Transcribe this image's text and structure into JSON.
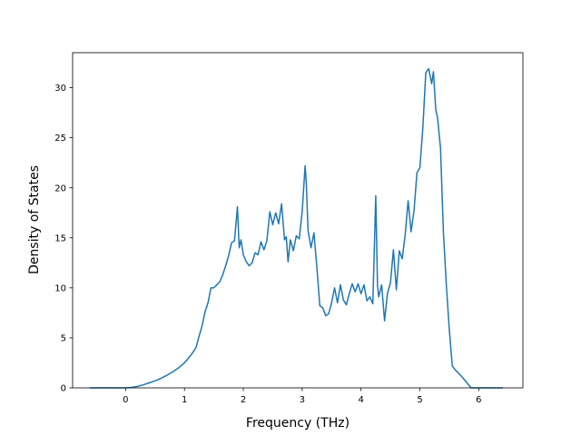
{
  "chart_data": {
    "type": "line",
    "title": "",
    "xlabel": "Frequency (THz)",
    "ylabel": "Density of States",
    "xlim": [
      -0.9,
      6.75
    ],
    "ylim": [
      0,
      33.5
    ],
    "xticks": [
      0,
      1,
      2,
      3,
      4,
      5,
      6
    ],
    "yticks": [
      0,
      5,
      10,
      15,
      20,
      25,
      30
    ],
    "grid": false,
    "legend": "none",
    "series": [
      {
        "color": "#1f77b4",
        "x": [
          -0.6,
          -0.3,
          0.0,
          0.1,
          0.2,
          0.3,
          0.4,
          0.5,
          0.6,
          0.7,
          0.8,
          0.9,
          1.0,
          1.1,
          1.15,
          1.2,
          1.25,
          1.3,
          1.35,
          1.4,
          1.45,
          1.5,
          1.55,
          1.6,
          1.65,
          1.7,
          1.75,
          1.8,
          1.85,
          1.9,
          1.93,
          1.96,
          2.0,
          2.05,
          2.1,
          2.15,
          2.2,
          2.25,
          2.3,
          2.35,
          2.4,
          2.45,
          2.5,
          2.55,
          2.6,
          2.65,
          2.7,
          2.73,
          2.76,
          2.8,
          2.85,
          2.9,
          2.95,
          3.0,
          3.05,
          3.07,
          3.1,
          3.15,
          3.2,
          3.25,
          3.3,
          3.35,
          3.4,
          3.45,
          3.5,
          3.55,
          3.6,
          3.65,
          3.7,
          3.75,
          3.8,
          3.85,
          3.9,
          3.95,
          4.0,
          4.05,
          4.1,
          4.15,
          4.2,
          4.25,
          4.28,
          4.3,
          4.35,
          4.4,
          4.45,
          4.5,
          4.55,
          4.6,
          4.65,
          4.7,
          4.75,
          4.8,
          4.85,
          4.9,
          4.95,
          5.0,
          5.05,
          5.1,
          5.15,
          5.2,
          5.23,
          5.27,
          5.3,
          5.35,
          5.4,
          5.45,
          5.5,
          5.55,
          5.6,
          5.7,
          5.8,
          5.87,
          6.0,
          6.2,
          6.4
        ],
        "y": [
          0,
          0,
          0,
          0.05,
          0.15,
          0.3,
          0.5,
          0.7,
          0.95,
          1.25,
          1.6,
          2.0,
          2.5,
          3.2,
          3.6,
          4.1,
          5.2,
          6.2,
          7.6,
          8.5,
          10.0,
          10.0,
          10.3,
          10.6,
          11.3,
          12.2,
          13.2,
          14.5,
          14.7,
          18.1,
          14.0,
          14.8,
          13.3,
          12.6,
          12.2,
          12.5,
          13.5,
          13.3,
          14.6,
          13.8,
          14.7,
          17.6,
          16.3,
          17.5,
          16.4,
          18.4,
          14.8,
          15.1,
          12.6,
          14.8,
          13.7,
          15.2,
          14.9,
          17.6,
          22.2,
          20.5,
          15.7,
          14.0,
          15.5,
          12.0,
          8.2,
          8.0,
          7.2,
          7.4,
          8.5,
          10.0,
          8.5,
          10.3,
          8.8,
          8.3,
          9.4,
          10.4,
          9.6,
          10.4,
          9.4,
          10.3,
          8.7,
          9.1,
          8.4,
          19.2,
          10.2,
          9.1,
          10.3,
          6.7,
          9.5,
          10.5,
          13.8,
          9.8,
          13.7,
          12.9,
          15.3,
          18.7,
          15.6,
          17.7,
          21.5,
          22.0,
          26.0,
          31.5,
          31.9,
          30.4,
          31.6,
          27.8,
          27.0,
          24.0,
          15.5,
          10.2,
          5.8,
          2.2,
          1.8,
          1.2,
          0.5,
          0,
          0,
          0,
          0
        ]
      }
    ]
  }
}
